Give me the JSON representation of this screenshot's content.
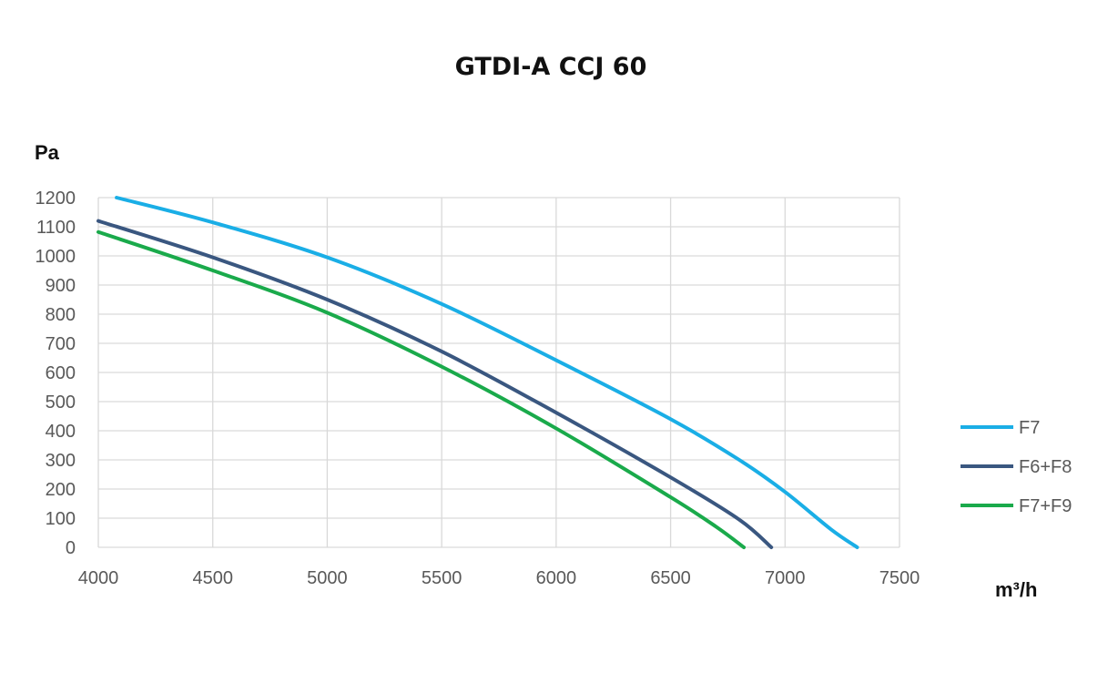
{
  "chart_data": {
    "type": "line",
    "title": "GTDI-A CCJ 60",
    "ylabel": "Pa",
    "xlabel": "m³/h",
    "xlim": [
      4000,
      7500
    ],
    "ylim": [
      0,
      1200
    ],
    "xticks": [
      "4000",
      "4500",
      "5000",
      "5500",
      "6000",
      "6500",
      "7000",
      "7500"
    ],
    "yticks": [
      "0",
      "100",
      "200",
      "300",
      "400",
      "500",
      "600",
      "700",
      "800",
      "900",
      "1000",
      "1100",
      "1200"
    ],
    "grid": true,
    "legend_position": "right",
    "series": [
      {
        "name": "F7",
        "color": "#1aaee6",
        "points": [
          [
            4080,
            1200
          ],
          [
            4500,
            1115
          ],
          [
            5000,
            995
          ],
          [
            5500,
            835
          ],
          [
            6000,
            642
          ],
          [
            6500,
            440
          ],
          [
            6800,
            300
          ],
          [
            7000,
            190
          ],
          [
            7200,
            62
          ],
          [
            7315,
            0
          ]
        ]
      },
      {
        "name": "F6+F8",
        "color": "#3a5780",
        "points": [
          [
            4000,
            1120
          ],
          [
            4500,
            995
          ],
          [
            5000,
            850
          ],
          [
            5500,
            672
          ],
          [
            6000,
            462
          ],
          [
            6500,
            240
          ],
          [
            6800,
            95
          ],
          [
            6940,
            0
          ]
        ]
      },
      {
        "name": "F7+F9",
        "color": "#1aaa4b",
        "points": [
          [
            4000,
            1082
          ],
          [
            4500,
            950
          ],
          [
            5000,
            805
          ],
          [
            5500,
            620
          ],
          [
            6000,
            408
          ],
          [
            6500,
            172
          ],
          [
            6700,
            70
          ],
          [
            6820,
            0
          ]
        ]
      }
    ]
  }
}
